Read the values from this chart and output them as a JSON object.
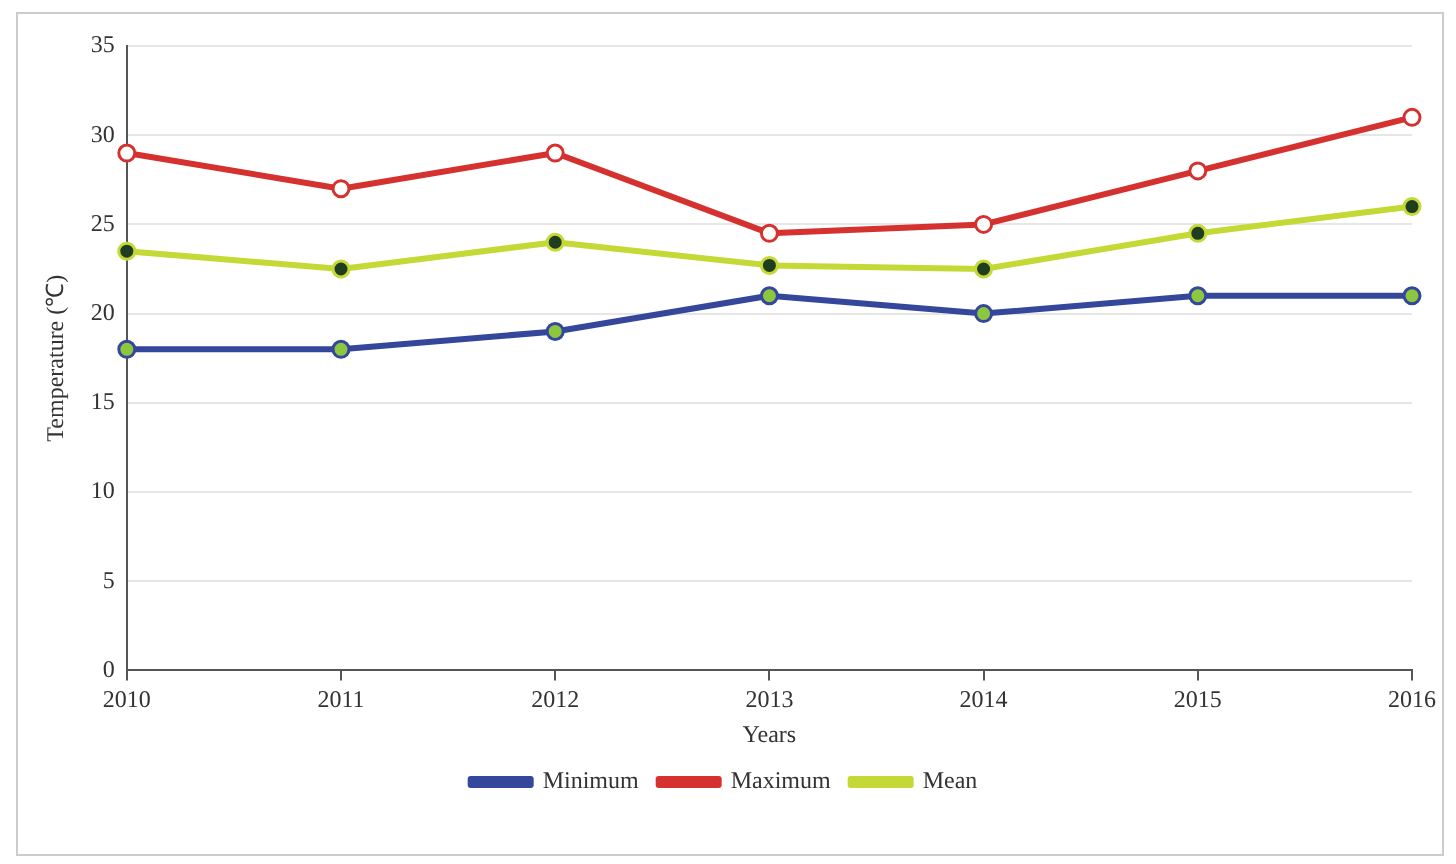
{
  "chart_data": {
    "type": "line",
    "xlabel": "Years",
    "ylabel": "Temperature (℃)",
    "categories": [
      "2010",
      "2011",
      "2012",
      "2013",
      "2014",
      "2015",
      "2016"
    ],
    "series": [
      {
        "name": "Minimum",
        "color": "#34479a",
        "values": [
          18,
          18,
          19,
          21,
          20,
          21,
          21
        ]
      },
      {
        "name": "Maximum",
        "color": "#d5312f",
        "values": [
          29,
          27,
          29,
          24.5,
          25,
          28,
          31
        ]
      },
      {
        "name": "Mean",
        "color": "#c4d935",
        "values": [
          23.5,
          22.5,
          24,
          22.7,
          22.5,
          24.5,
          26
        ]
      }
    ],
    "ylim": [
      0,
      35
    ],
    "yticks": [
      0,
      5,
      10,
      15,
      20,
      25,
      30,
      35
    ],
    "grid": "y",
    "legend": "bottom",
    "marker": "circle",
    "line_style": "solid"
  }
}
